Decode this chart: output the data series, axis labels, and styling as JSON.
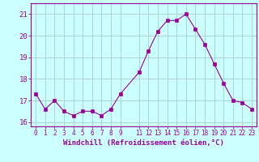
{
  "x": [
    0,
    1,
    2,
    3,
    4,
    5,
    6,
    7,
    8,
    9,
    11,
    12,
    13,
    14,
    15,
    16,
    17,
    18,
    19,
    20,
    21,
    22,
    23
  ],
  "y": [
    17.3,
    16.6,
    17.0,
    16.5,
    16.3,
    16.5,
    16.5,
    16.3,
    16.6,
    17.3,
    18.3,
    19.3,
    20.2,
    20.7,
    20.7,
    21.0,
    20.3,
    19.6,
    18.7,
    17.8,
    17.0,
    16.9,
    16.6
  ],
  "line_color": "#990099",
  "marker": "s",
  "marker_size": 2.5,
  "bg_color": "#ccffff",
  "grid_color": "#aacccc",
  "xlabel": "Windchill (Refroidissement éolien,°C)",
  "xlabel_color": "#990099",
  "tick_color": "#990099",
  "ylim": [
    15.8,
    21.5
  ],
  "yticks": [
    16,
    17,
    18,
    19,
    20,
    21
  ],
  "xlim": [
    -0.5,
    23.5
  ],
  "xticks": [
    0,
    1,
    2,
    3,
    4,
    5,
    6,
    7,
    8,
    9,
    11,
    12,
    13,
    14,
    15,
    16,
    17,
    18,
    19,
    20,
    21,
    22,
    23
  ]
}
